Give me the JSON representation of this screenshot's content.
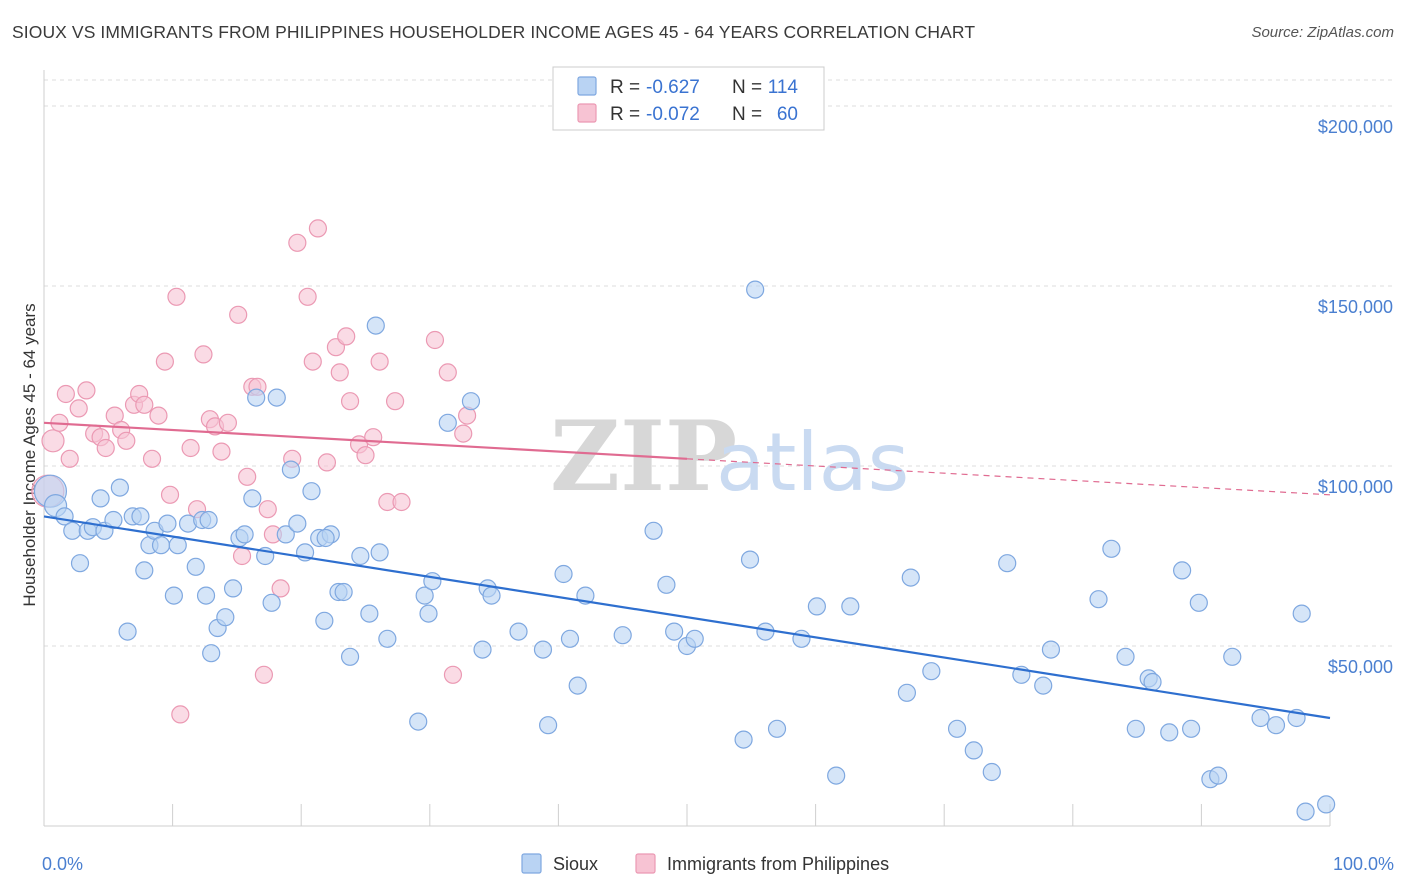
{
  "title": "SIOUX VS IMMIGRANTS FROM PHILIPPINES HOUSEHOLDER INCOME AGES 45 - 64 YEARS CORRELATION CHART",
  "source": "Source: ZipAtlas.com",
  "watermark": {
    "zip": "ZIP",
    "atlas": "atlas"
  },
  "colors": {
    "sioux_fill": "#b9d3f3",
    "sioux_stroke": "#7fa8e0",
    "sioux_line": "#2e6fcf",
    "phil_fill": "#f7c3d3",
    "phil_stroke": "#eb99b3",
    "phil_line": "#e06b91",
    "tick_text": "#4a7fd0",
    "grid": "#dcdcdc"
  },
  "legend": {
    "rows": [
      {
        "r_label": "R =",
        "r_value": "-0.627",
        "n_label": "N =",
        "n_value": "114",
        "series": "sioux"
      },
      {
        "r_label": "R =",
        "r_value": "-0.072",
        "n_label": "N =",
        "n_value": "60",
        "series": "phil"
      }
    ]
  },
  "bottom_legend": [
    "Sioux",
    "Immigrants from Philippines"
  ],
  "chart_data": {
    "type": "scatter",
    "title": "SIOUX VS IMMIGRANTS FROM PHILIPPINES HOUSEHOLDER INCOME AGES 45 - 64 YEARS CORRELATION CHART",
    "xlabel": "",
    "ylabel": "Householder Income Ages 45 - 64 years",
    "xlim": [
      0,
      100
    ],
    "ylim": [
      0,
      210000
    ],
    "x_tick_labels": [
      "0.0%",
      "100.0%"
    ],
    "y_ticks": [
      50000,
      100000,
      150000,
      200000
    ],
    "y_tick_labels": [
      "$50,000",
      "$100,000",
      "$150,000",
      "$200,000"
    ],
    "grid": true,
    "legend_position": "top-center",
    "series": [
      {
        "name": "Sioux",
        "r": -0.627,
        "n": 114,
        "trend": {
          "x": [
            0,
            100
          ],
          "y": [
            86000,
            30000
          ],
          "x_solid_end": 100
        },
        "points": [
          [
            0.5,
            93000
          ],
          [
            0.9,
            89000
          ],
          [
            1.6,
            86000
          ],
          [
            2.2,
            82000
          ],
          [
            2.8,
            73000
          ],
          [
            3.4,
            82000
          ],
          [
            3.8,
            83000
          ],
          [
            4.4,
            91000
          ],
          [
            4.7,
            82000
          ],
          [
            5.4,
            85000
          ],
          [
            5.9,
            94000
          ],
          [
            6.5,
            54000
          ],
          [
            6.9,
            86000
          ],
          [
            7.5,
            86000
          ],
          [
            7.8,
            71000
          ],
          [
            8.2,
            78000
          ],
          [
            8.6,
            82000
          ],
          [
            9.1,
            78000
          ],
          [
            9.6,
            84000
          ],
          [
            10.1,
            64000
          ],
          [
            10.4,
            78000
          ],
          [
            11.2,
            84000
          ],
          [
            11.8,
            72000
          ],
          [
            12.3,
            85000
          ],
          [
            12.6,
            64000
          ],
          [
            13.0,
            48000
          ],
          [
            13.5,
            55000
          ],
          [
            14.1,
            58000
          ],
          [
            14.7,
            66000
          ],
          [
            15.2,
            80000
          ],
          [
            15.6,
            81000
          ],
          [
            16.2,
            91000
          ],
          [
            16.5,
            119000
          ],
          [
            17.2,
            75000
          ],
          [
            17.7,
            62000
          ],
          [
            18.1,
            119000
          ],
          [
            18.8,
            81000
          ],
          [
            19.2,
            99000
          ],
          [
            19.7,
            84000
          ],
          [
            20.3,
            76000
          ],
          [
            20.8,
            93000
          ],
          [
            21.4,
            80000
          ],
          [
            21.8,
            57000
          ],
          [
            22.3,
            81000
          ],
          [
            22.9,
            65000
          ],
          [
            23.3,
            65000
          ],
          [
            23.8,
            47000
          ],
          [
            24.6,
            75000
          ],
          [
            25.3,
            59000
          ],
          [
            25.8,
            139000
          ],
          [
            26.1,
            76000
          ],
          [
            26.7,
            52000
          ],
          [
            29.1,
            29000
          ],
          [
            29.6,
            64000
          ],
          [
            29.9,
            59000
          ],
          [
            30.2,
            68000
          ],
          [
            31.4,
            112000
          ],
          [
            33.2,
            118000
          ],
          [
            34.1,
            49000
          ],
          [
            34.5,
            66000
          ],
          [
            34.8,
            64000
          ],
          [
            36.9,
            54000
          ],
          [
            38.8,
            49000
          ],
          [
            39.2,
            28000
          ],
          [
            40.4,
            70000
          ],
          [
            40.9,
            52000
          ],
          [
            41.5,
            39000
          ],
          [
            42.1,
            64000
          ],
          [
            45.0,
            53000
          ],
          [
            47.4,
            82000
          ],
          [
            48.4,
            67000
          ],
          [
            49.0,
            54000
          ],
          [
            50.0,
            50000
          ],
          [
            50.6,
            52000
          ],
          [
            54.4,
            24000
          ],
          [
            54.9,
            74000
          ],
          [
            55.3,
            149000
          ],
          [
            56.1,
            54000
          ],
          [
            57.0,
            27000
          ],
          [
            58.9,
            52000
          ],
          [
            60.1,
            61000
          ],
          [
            61.6,
            14000
          ],
          [
            62.7,
            61000
          ],
          [
            67.1,
            37000
          ],
          [
            67.4,
            69000
          ],
          [
            69.0,
            43000
          ],
          [
            71.0,
            27000
          ],
          [
            72.3,
            21000
          ],
          [
            73.7,
            15000
          ],
          [
            74.9,
            73000
          ],
          [
            76.0,
            42000
          ],
          [
            77.7,
            39000
          ],
          [
            78.3,
            49000
          ],
          [
            82.0,
            63000
          ],
          [
            83.0,
            77000
          ],
          [
            84.1,
            47000
          ],
          [
            84.9,
            27000
          ],
          [
            85.9,
            41000
          ],
          [
            86.2,
            40000
          ],
          [
            87.5,
            26000
          ],
          [
            88.5,
            71000
          ],
          [
            89.2,
            27000
          ],
          [
            89.8,
            62000
          ],
          [
            90.7,
            13000
          ],
          [
            91.3,
            14000
          ],
          [
            92.4,
            47000
          ],
          [
            94.6,
            30000
          ],
          [
            95.8,
            28000
          ],
          [
            97.4,
            30000
          ],
          [
            97.8,
            59000
          ],
          [
            98.1,
            4000
          ],
          [
            99.7,
            6000
          ],
          [
            12.8,
            85000
          ],
          [
            21.9,
            80000
          ]
        ]
      },
      {
        "name": "Immigrants from Philippines",
        "r": -0.072,
        "n": 60,
        "trend": {
          "x": [
            0,
            100
          ],
          "y": [
            112000,
            92000
          ],
          "x_solid_end": 50
        },
        "points": [
          [
            0.3,
            93000
          ],
          [
            0.7,
            107000
          ],
          [
            1.2,
            112000
          ],
          [
            1.7,
            120000
          ],
          [
            2.0,
            102000
          ],
          [
            2.7,
            116000
          ],
          [
            3.3,
            121000
          ],
          [
            3.9,
            109000
          ],
          [
            4.4,
            108000
          ],
          [
            4.8,
            105000
          ],
          [
            5.5,
            114000
          ],
          [
            6.0,
            110000
          ],
          [
            6.4,
            107000
          ],
          [
            7.0,
            117000
          ],
          [
            7.4,
            120000
          ],
          [
            7.8,
            117000
          ],
          [
            8.4,
            102000
          ],
          [
            8.9,
            114000
          ],
          [
            9.4,
            129000
          ],
          [
            9.8,
            92000
          ],
          [
            10.3,
            147000
          ],
          [
            10.6,
            31000
          ],
          [
            11.4,
            105000
          ],
          [
            11.9,
            88000
          ],
          [
            12.4,
            131000
          ],
          [
            12.9,
            113000
          ],
          [
            13.3,
            111000
          ],
          [
            13.8,
            104000
          ],
          [
            14.3,
            112000
          ],
          [
            15.1,
            142000
          ],
          [
            15.4,
            75000
          ],
          [
            15.8,
            97000
          ],
          [
            16.2,
            122000
          ],
          [
            16.6,
            122000
          ],
          [
            17.1,
            42000
          ],
          [
            17.4,
            88000
          ],
          [
            17.8,
            81000
          ],
          [
            18.4,
            66000
          ],
          [
            19.3,
            102000
          ],
          [
            19.7,
            162000
          ],
          [
            20.5,
            147000
          ],
          [
            20.9,
            129000
          ],
          [
            21.3,
            166000
          ],
          [
            22.0,
            101000
          ],
          [
            22.7,
            133000
          ],
          [
            23.0,
            126000
          ],
          [
            23.5,
            136000
          ],
          [
            23.8,
            118000
          ],
          [
            24.5,
            106000
          ],
          [
            25.0,
            103000
          ],
          [
            25.6,
            108000
          ],
          [
            26.1,
            129000
          ],
          [
            26.7,
            90000
          ],
          [
            27.3,
            118000
          ],
          [
            27.8,
            90000
          ],
          [
            30.4,
            135000
          ],
          [
            31.4,
            126000
          ],
          [
            31.8,
            42000
          ],
          [
            32.6,
            109000
          ],
          [
            32.9,
            114000
          ]
        ]
      }
    ]
  }
}
